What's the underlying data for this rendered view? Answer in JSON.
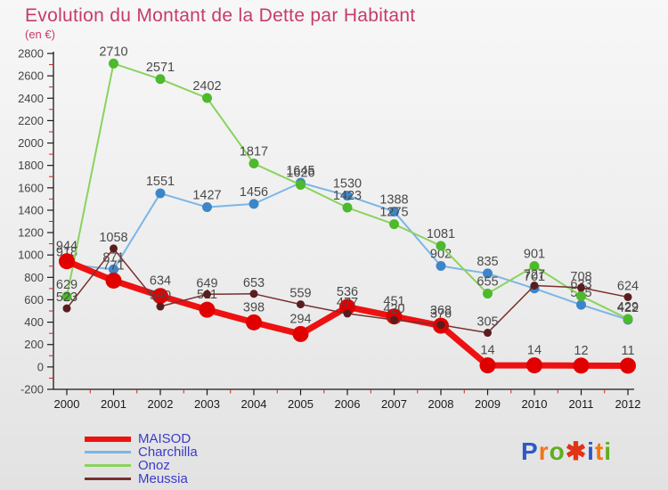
{
  "title": "Evolution du Montant de la Dette par Habitant",
  "subtitle": "(en €)",
  "chart_data": {
    "type": "line",
    "title": "Evolution du Montant de la Dette par Habitant",
    "subtitle": "(en €)",
    "x": [
      2000,
      2001,
      2002,
      2003,
      2004,
      2005,
      2006,
      2007,
      2008,
      2009,
      2010,
      2011,
      2012
    ],
    "ylim": [
      -200,
      2800
    ],
    "ytick_step": 200,
    "grid": false,
    "legend_position": "bottom-left",
    "draw_order": [
      "Charchilla",
      "Onoz",
      "MAISOD",
      "Meussia"
    ],
    "axis_color": "#1a1a1a",
    "minor_tick_color": "#cc2222",
    "label_color": "#4a4a4a",
    "series": [
      {
        "name": "MAISOD",
        "line_color": "#ee1111",
        "dot_color": "#e00000",
        "line_width": 7,
        "dot_radius": 9,
        "values": [
          944,
          771,
          634,
          511,
          398,
          294,
          536,
          451,
          368,
          14,
          14,
          12,
          11
        ]
      },
      {
        "name": "Charchilla",
        "line_color": "#7ab6e8",
        "dot_color": "#3d85c8",
        "line_width": 2,
        "dot_radius": 5.5,
        "values": [
          918,
          871,
          1551,
          1427,
          1456,
          1645,
          1530,
          1388,
          902,
          835,
          701,
          555,
          422
        ]
      },
      {
        "name": "Onoz",
        "line_color": "#8ad35e",
        "dot_color": "#4db92c",
        "line_width": 2,
        "dot_radius": 5.5,
        "values": [
          629,
          2710,
          2571,
          2402,
          1817,
          1626,
          1423,
          1275,
          1081,
          655,
          901,
          633,
          429
        ]
      },
      {
        "name": "Meussia",
        "line_color": "#7a2f2f",
        "dot_color": "#5a1d1d",
        "line_width": 1.5,
        "dot_radius": 4.5,
        "values": [
          523,
          1058,
          540,
          649,
          653,
          559,
          477,
          420,
          376,
          305,
          727,
          708,
          624
        ]
      }
    ]
  },
  "logo": {
    "text": "Proxiti",
    "letters": [
      {
        "ch": "P",
        "color": "#2d59c8"
      },
      {
        "ch": "r",
        "color": "#f07818"
      },
      {
        "ch": "o",
        "color": "#5fae1f"
      },
      {
        "ch": "✱",
        "color": "#e03318"
      },
      {
        "ch": "i",
        "color": "#2d59c8"
      },
      {
        "ch": "t",
        "color": "#f07818"
      },
      {
        "ch": "i",
        "color": "#5fae1f"
      }
    ]
  }
}
